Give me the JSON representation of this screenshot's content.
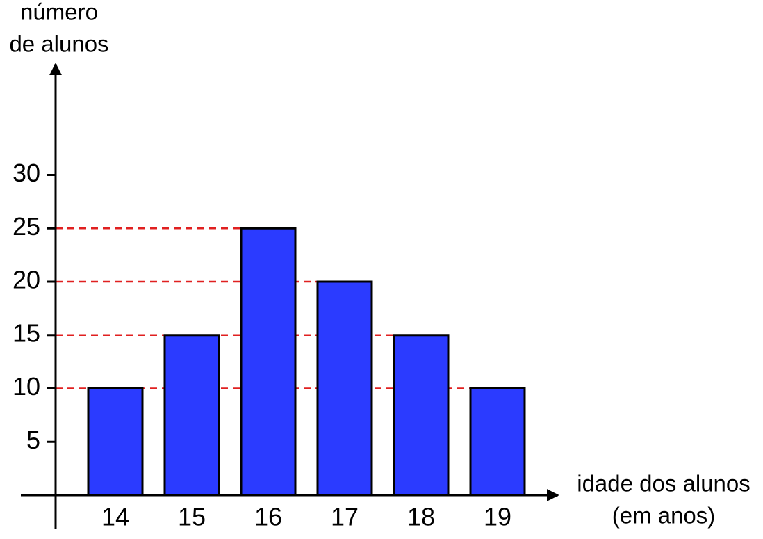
{
  "chart_data": {
    "type": "bar",
    "y_label": [
      "número",
      "de alunos"
    ],
    "x_label": [
      "idade dos alunos",
      "(em anos)"
    ],
    "categories": [
      "14",
      "15",
      "16",
      "17",
      "18",
      "19"
    ],
    "values": [
      10,
      15,
      25,
      20,
      15,
      10
    ],
    "color": "#2b3bff",
    "guide_color": "#e02020",
    "ylim": [
      0,
      40
    ],
    "yticks": [
      5,
      10,
      15,
      20,
      25,
      30
    ]
  }
}
